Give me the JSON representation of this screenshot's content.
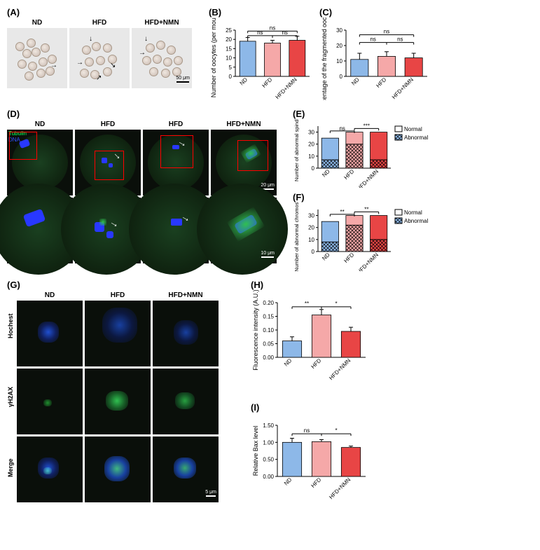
{
  "panelA": {
    "label": "(A)",
    "conditions": [
      "ND",
      "HFD",
      "HFD+NMN"
    ],
    "scale": "50 μm"
  },
  "panelB": {
    "label": "(B)",
    "ylabel": "Number of oocytes (per mouse)",
    "ylim": [
      0,
      25
    ],
    "ytick_step": 5,
    "categories": [
      "ND",
      "HFD",
      "HFD+NMN"
    ],
    "values": [
      19,
      18,
      19.5
    ],
    "errors": [
      2.0,
      1.5,
      2.2
    ],
    "colors": [
      "#8db8e8",
      "#f5a8a8",
      "#e84545"
    ],
    "sig": [
      {
        "from": 0,
        "to": 1,
        "y": 22,
        "label": "ns"
      },
      {
        "from": 1,
        "to": 2,
        "y": 22,
        "label": "ns"
      },
      {
        "from": 0,
        "to": 2,
        "y": 24.5,
        "label": "ns"
      }
    ]
  },
  "panelC": {
    "label": "(C)",
    "ylabel": "Percentage of the fragmented oocytes (%)",
    "ylim": [
      0,
      30
    ],
    "ytick_step": 10,
    "categories": [
      "ND",
      "HFD",
      "HFD+NMN"
    ],
    "values": [
      11,
      13,
      12
    ],
    "errors": [
      4,
      3,
      3
    ],
    "colors": [
      "#8db8e8",
      "#f5a8a8",
      "#e84545"
    ],
    "sig": [
      {
        "from": 0,
        "to": 1,
        "y": 22,
        "label": "ns"
      },
      {
        "from": 1,
        "to": 2,
        "y": 22,
        "label": "ns"
      },
      {
        "from": 0,
        "to": 2,
        "y": 27,
        "label": "ns"
      }
    ]
  },
  "panelD": {
    "label": "(D)",
    "conditions": [
      "ND",
      "HFD",
      "HFD",
      "HFD+NMN"
    ],
    "stain_tubulin": "Tubulin",
    "stain_dna": "DNA",
    "tubulin_color": "#00ff55",
    "dna_color": "#3050ff",
    "scale_top": "20 μm",
    "scale_bottom": "10 μm"
  },
  "panelE": {
    "label": "(E)",
    "ylabel": "Number of abnormal spindles",
    "categories": [
      "ND",
      "HFD",
      "HFD+NMN"
    ],
    "ylim": [
      0,
      35
    ],
    "ytick_step": 10,
    "normal": [
      18,
      10,
      23
    ],
    "abnormal": [
      7,
      20,
      7
    ],
    "normal_colors": [
      "#8db8e8",
      "#f5a8a8",
      "#e84545"
    ],
    "legend": [
      "Normal",
      "Abnormal"
    ],
    "sig": [
      {
        "from": 0,
        "to": 1,
        "y": 31,
        "label": "ns"
      },
      {
        "from": 1,
        "to": 2,
        "y": 33,
        "label": "***"
      }
    ]
  },
  "panelF": {
    "label": "(F)",
    "ylabel": "Number of abnormal chromosomes",
    "categories": [
      "ND",
      "HFD",
      "HFD+NMN"
    ],
    "ylim": [
      0,
      35
    ],
    "ytick_step": 10,
    "normal": [
      17,
      8,
      20
    ],
    "abnormal": [
      8,
      22,
      10
    ],
    "normal_colors": [
      "#8db8e8",
      "#f5a8a8",
      "#e84545"
    ],
    "legend": [
      "Normal",
      "Abnormal"
    ],
    "sig": [
      {
        "from": 0,
        "to": 1,
        "y": 31,
        "label": "**"
      },
      {
        "from": 1,
        "to": 2,
        "y": 33,
        "label": "**"
      }
    ]
  },
  "panelG": {
    "label": "(G)",
    "conditions": [
      "ND",
      "HFD",
      "HFD+NMN"
    ],
    "rows": [
      "Hochest",
      "γH2AX",
      "Merge"
    ],
    "scale": "5 μm"
  },
  "panelH": {
    "label": "(H)",
    "ylabel": "Fluorescence intensity (A.U.)",
    "ylim": [
      0,
      0.2
    ],
    "ytick_step": 0.05,
    "categories": [
      "ND",
      "HFD",
      "HFD+NMN"
    ],
    "values": [
      0.06,
      0.155,
      0.095
    ],
    "errors": [
      0.015,
      0.02,
      0.015
    ],
    "colors": [
      "#8db8e8",
      "#f5a8a8",
      "#e84545"
    ],
    "sig": [
      {
        "from": 0,
        "to": 1,
        "y": 0.185,
        "label": "**"
      },
      {
        "from": 1,
        "to": 2,
        "y": 0.185,
        "label": "*"
      }
    ]
  },
  "panelI": {
    "label": "(I)",
    "ylabel": "Relative Bax level",
    "ylim": [
      0,
      1.5
    ],
    "ytick_step": 0.5,
    "categories": [
      "ND",
      "HFD",
      "HFD+NMN"
    ],
    "values": [
      1.0,
      1.02,
      0.85
    ],
    "errors": [
      0.12,
      0.06,
      0.04
    ],
    "colors": [
      "#8db8e8",
      "#f5a8a8",
      "#e84545"
    ],
    "sig": [
      {
        "from": 0,
        "to": 1,
        "y": 1.25,
        "label": "ns"
      },
      {
        "from": 1,
        "to": 2,
        "y": 1.25,
        "label": "*"
      }
    ]
  }
}
